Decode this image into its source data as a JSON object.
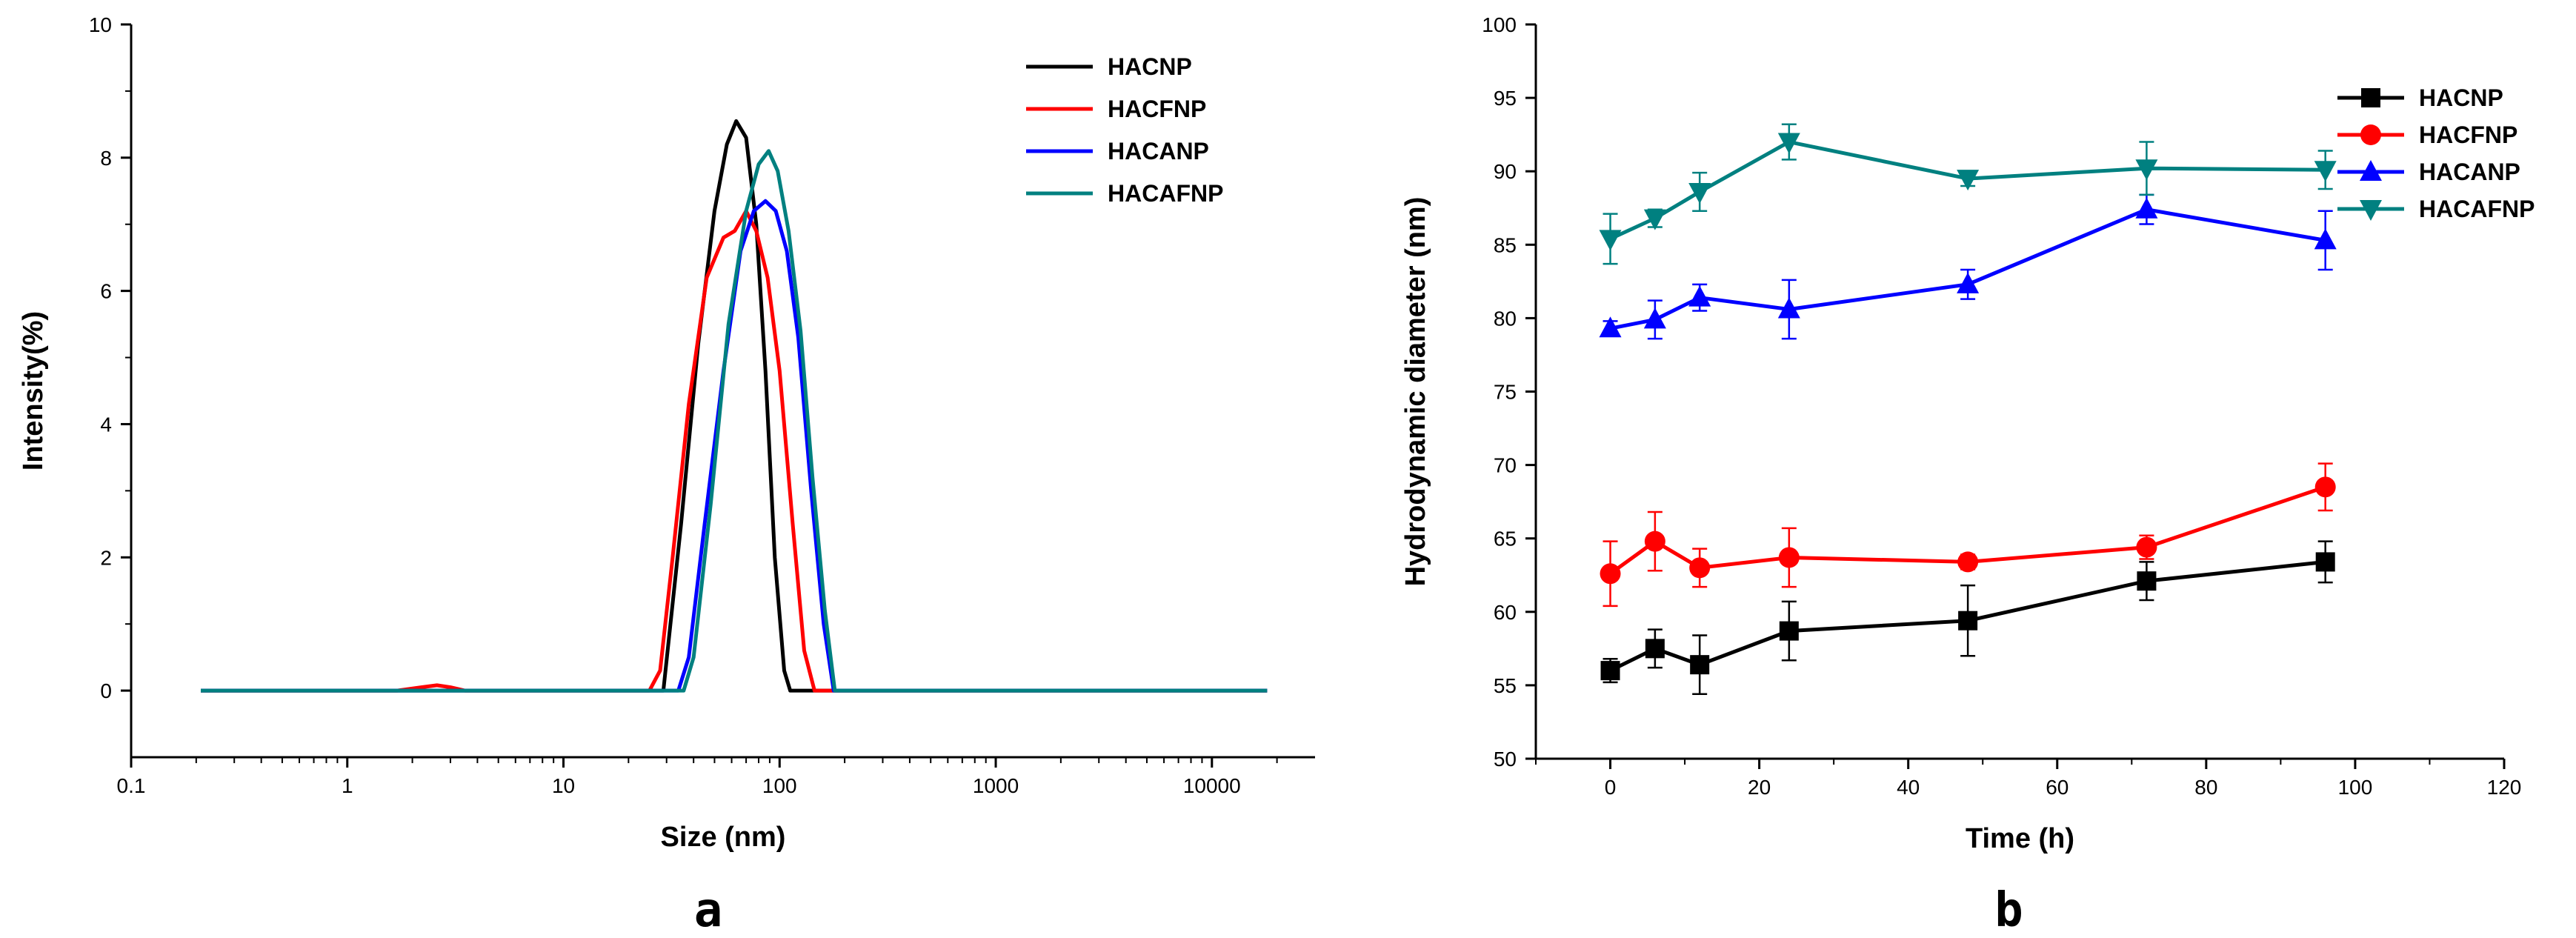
{
  "chart_data": [
    {
      "type": "line",
      "panel_label": "a",
      "xlabel": "Size (nm)",
      "ylabel": "Intensity(%)",
      "xscale": "log",
      "xlim": [
        0.1,
        30000
      ],
      "ylim": [
        -1,
        10
      ],
      "xticks": [
        0.1,
        1,
        10,
        100,
        1000,
        10000
      ],
      "xtick_labels": [
        "0.1",
        "1",
        "10",
        "100",
        "1000",
        "10000"
      ],
      "yticks": [
        0,
        2,
        4,
        6,
        8,
        10
      ],
      "ytick_labels": [
        "0",
        "2",
        "4",
        "6",
        "8",
        "10"
      ],
      "legend_placement": "top-right",
      "series": [
        {
          "name": "HACNP",
          "color": "#000000",
          "x": [
            0.21,
            26,
            29,
            35,
            42,
            50,
            57,
            63,
            70,
            78,
            86,
            95,
            105,
            112,
            120,
            18000
          ],
          "y": [
            0,
            0,
            0,
            2.5,
            5.2,
            7.2,
            8.2,
            8.55,
            8.3,
            7.0,
            4.8,
            2.0,
            0.3,
            0,
            0,
            0
          ]
        },
        {
          "name": "HACFNP",
          "color": "#ff0000",
          "x": [
            0.21,
            1.7,
            2.2,
            2.6,
            3.0,
            3.5,
            25,
            28,
            32,
            38,
            46,
            55,
            62,
            70,
            78,
            88,
            100,
            115,
            130,
            145,
            160,
            18000
          ],
          "y": [
            0,
            0,
            0.05,
            0.08,
            0.05,
            0,
            0,
            0.3,
            2.0,
            4.3,
            6.2,
            6.8,
            6.9,
            7.2,
            6.9,
            6.2,
            4.8,
            2.5,
            0.6,
            0,
            0,
            0
          ]
        },
        {
          "name": "HACANP",
          "color": "#0000ff",
          "x": [
            0.21,
            34,
            38,
            45,
            55,
            66,
            76,
            86,
            96,
            108,
            122,
            140,
            160,
            178,
            190,
            18000
          ],
          "y": [
            0,
            0,
            0.5,
            2.5,
            4.8,
            6.6,
            7.2,
            7.35,
            7.2,
            6.6,
            5.3,
            3.0,
            1.0,
            0,
            0,
            0
          ]
        },
        {
          "name": "HACAFNP",
          "color": "#008080",
          "x": [
            0.21,
            36,
            40,
            48,
            58,
            70,
            80,
            89,
            98,
            110,
            125,
            142,
            162,
            180,
            195,
            18000
          ],
          "y": [
            0,
            0,
            0.5,
            2.8,
            5.5,
            7.2,
            7.9,
            8.1,
            7.8,
            6.9,
            5.4,
            3.2,
            1.2,
            0,
            0,
            0
          ]
        }
      ]
    },
    {
      "type": "line",
      "panel_label": "b",
      "xlabel": "Time (h)",
      "ylabel": "Hydrodynamic diameter (nm)",
      "xlim": [
        -10,
        120
      ],
      "ylim": [
        50,
        100
      ],
      "xticks": [
        0,
        20,
        40,
        60,
        80,
        100,
        120
      ],
      "xtick_labels": [
        "0",
        "20",
        "40",
        "60",
        "80",
        "100",
        "120"
      ],
      "yticks": [
        50,
        55,
        60,
        65,
        70,
        75,
        80,
        85,
        90,
        95,
        100
      ],
      "ytick_labels": [
        "50",
        "55",
        "60",
        "65",
        "70",
        "75",
        "80",
        "85",
        "90",
        "95",
        "100"
      ],
      "legend_placement": "top-right",
      "x": [
        0,
        6,
        12,
        24,
        48,
        72,
        96
      ],
      "series": [
        {
          "name": "HACNP",
          "color": "#000000",
          "marker": "square",
          "values": [
            56.0,
            57.5,
            56.4,
            58.7,
            59.4,
            62.1,
            63.4
          ],
          "errors": [
            0.8,
            1.3,
            2.0,
            2.0,
            2.4,
            1.3,
            1.4
          ]
        },
        {
          "name": "HACFNP",
          "color": "#ff0000",
          "marker": "circle",
          "values": [
            62.6,
            64.8,
            63.0,
            63.7,
            63.4,
            64.4,
            68.5
          ],
          "errors": [
            2.2,
            2.0,
            1.3,
            2.0,
            0.5,
            0.8,
            1.6
          ]
        },
        {
          "name": "HACANP",
          "color": "#0000ff",
          "marker": "triangle-up",
          "values": [
            79.3,
            79.9,
            81.4,
            80.6,
            82.3,
            87.4,
            85.3
          ],
          "errors": [
            0.5,
            1.3,
            0.9,
            2.0,
            1.0,
            1.0,
            2.0
          ]
        },
        {
          "name": "HACAFNP",
          "color": "#008080",
          "marker": "triangle-down",
          "values": [
            85.4,
            86.8,
            88.6,
            92.0,
            89.5,
            90.2,
            90.1
          ],
          "errors": [
            1.7,
            0.6,
            1.3,
            1.2,
            0.5,
            1.8,
            1.3
          ]
        }
      ]
    }
  ]
}
